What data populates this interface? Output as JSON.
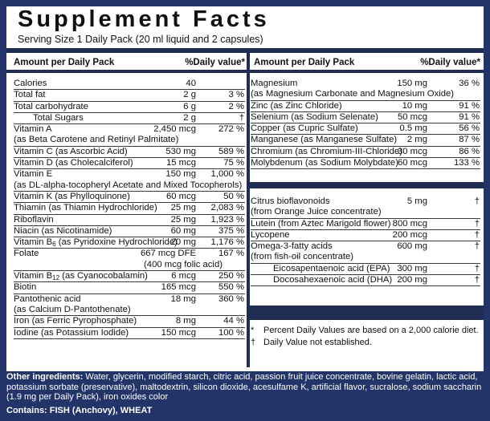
{
  "panel": {
    "title": "Supplement Facts",
    "serving": "Serving Size 1 Daily Pack  (20 ml liquid and 2 capsules)",
    "amount_header": "Amount per Daily Pack",
    "dv_header": "%Daily value*"
  },
  "left_rows": [
    {
      "name": "Calories",
      "amount": "40",
      "dv": ""
    },
    {
      "name": "Total fat",
      "amount": "2 g",
      "dv": "3 %"
    },
    {
      "name": "Total carbohydrate",
      "amount": "6 g",
      "dv": "2 %"
    },
    {
      "name": "Total Sugars",
      "amount": "2 g",
      "dv": "†"
    },
    {
      "name": "Vitamin A",
      "sub": "(as Beta Carotene and Retinyl Palmitate)",
      "amount": "2,450 mcg",
      "dv": "272 %"
    },
    {
      "name": "Vitamin C (as Ascorbic Acid)",
      "amount": "530 mg",
      "dv": "589 %"
    },
    {
      "name": "Vitamin D (as Cholecalciferol)",
      "amount": "15 mcg",
      "dv": "75 %"
    },
    {
      "name": "Vitamin E",
      "sub": "(as DL-alpha-tocopheryl Acetate and Mixed Tocopherols)",
      "amount": "150 mg",
      "dv": "1,000 %"
    },
    {
      "name": "Vitamin K (as Phylloquinone)",
      "amount": "60 mcg",
      "dv": "50 %"
    },
    {
      "name": "Thiamin (as Thiamin Hydrochloride)",
      "amount": "25 mg",
      "dv": "2,083 %"
    },
    {
      "name": "Riboflavin",
      "amount": "25 mg",
      "dv": "1,923 %"
    },
    {
      "name": "Niacin (as Nicotinamide)",
      "amount": "60 mg",
      "dv": "375 %"
    },
    {
      "name_pre": "Vitamin B",
      "name_sub": "6",
      "name_post": " (as Pyridoxine Hydrochloride)",
      "amount": "20 mg",
      "dv": "1,176 %"
    },
    {
      "name": "Folate",
      "amount": "667 mcg DFE",
      "dv": "167 %",
      "sub_amount": "(400 mcg folic acid)"
    },
    {
      "name_pre": "Vitamin B",
      "name_sub": "12",
      "name_post": " (as Cyanocobalamin)",
      "amount": "6 mcg",
      "dv": "250 %"
    },
    {
      "name": "Biotin",
      "amount": "165 mcg",
      "dv": "550 %"
    },
    {
      "name": "Pantothenic acid",
      "sub": "(as Calcium D-Pantothenate)",
      "amount": "18 mg",
      "dv": "360 %"
    },
    {
      "name": "Iron (as Ferric Pyrophosphate)",
      "amount": "8 mg",
      "dv": "44 %"
    },
    {
      "name": "Iodine (as Potassium Iodide)",
      "amount": "150 mcg",
      "dv": "100 %"
    }
  ],
  "right_rows": [
    {
      "name": "Magnesium",
      "sub": "(as Magnesium Carbonate and Magnesium Oxide)",
      "amount": "150 mg",
      "dv": "36 %"
    },
    {
      "name": "Zinc (as Zinc Chloride)",
      "amount": "10 mg",
      "dv": "91 %"
    },
    {
      "name": "Selenium (as Sodium Selenate)",
      "amount": "50 mcg",
      "dv": "91 %"
    },
    {
      "name": "Copper (as Cupric Sulfate)",
      "amount": "0.5 mg",
      "dv": "56 %"
    },
    {
      "name": "Manganese (as Manganese Sulfate)",
      "amount": "2 mg",
      "dv": "87 %"
    },
    {
      "name": "Chromium (as Chromium-III-Chloride)",
      "amount": "30 mcg",
      "dv": "86 %"
    },
    {
      "name": "Molybdenum (as Sodium Molybdate)",
      "amount": "60 mcg",
      "dv": "133 %"
    }
  ],
  "right_rows2": [
    {
      "name": "Citrus bioflavonoids",
      "sub": "(from Orange Juice concentrate)",
      "amount": "5 mg",
      "dv": "†"
    },
    {
      "name": "Lutein (from Aztec Marigold flower)",
      "amount": "800 mcg",
      "dv": "†"
    },
    {
      "name": "Lycopene",
      "amount": "200 mcg",
      "dv": "†"
    },
    {
      "name": "Omega-3-fatty acids",
      "sub": "(from fish-oil concentrate)",
      "amount": "600 mg",
      "dv": "†"
    },
    {
      "name": "Eicosapentaenoic acid (EPA)",
      "amount": "300 mg",
      "dv": "†",
      "indent": true
    },
    {
      "name": "Docosahexaenoic acid (DHA)",
      "amount": "200 mg",
      "dv": "†",
      "indent": true
    }
  ],
  "footnotes": {
    "star_mark": "*",
    "star_text": "Percent Daily Values are based on a 2,000 calorie diet.",
    "dagger_mark": "†",
    "dagger_text": "Daily Value not established."
  },
  "other": {
    "label": "Other ingredients:",
    "text": " Water, glycerin, modified starch, citric acid, passion fruit juice concentrate, bovine gelatin, lactic acid, potassium sorbate (preservative), maltodextrin, silicon dioxide, acesulfame K, artificial flavor, sucralose, sodium saccharin (1.9 mg per Daily Pack), iron oxides color"
  },
  "contains": "Contains: FISH (Anchovy), WHEAT",
  "colors": {
    "background": "#223468",
    "rule": "#1f2d55"
  }
}
